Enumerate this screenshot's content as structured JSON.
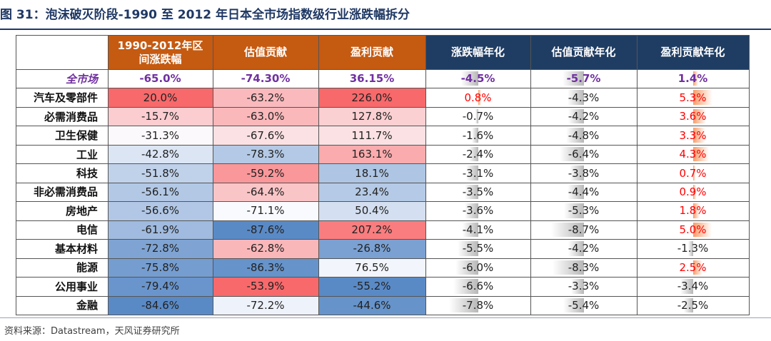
{
  "title": "图 31：泡沫破灭阶段-1990 至 2012 年日本全市场指数级行业涨跌幅拆分",
  "source": "资料来源：Datastream，天风证券研究所",
  "colors": {
    "header_orange": "#c55a11",
    "header_navy": "#1f3d63",
    "total_text": "#7030a0",
    "positive_text": "#ff0000",
    "grid_line": "#555555"
  },
  "chart_data": {
    "type": "table",
    "columns": [
      "",
      "1990-2012年区间涨跌幅",
      "估值贡献",
      "盈利贡献",
      "涨跌幅年化",
      "估值贡献年化",
      "盈利贡献年化"
    ],
    "rows": [
      {
        "label": "全市场",
        "total": true,
        "values": [
          "-65.0%",
          "-74.30%",
          "36.15%",
          "-4.5%",
          "-5.7%",
          "1.4%"
        ],
        "nums": [
          -65.0,
          -74.3,
          36.15,
          -4.5,
          -5.7,
          1.4
        ]
      },
      {
        "label": "汽车及零部件",
        "values": [
          "20.0%",
          "-63.2%",
          "226.0%",
          "0.8%",
          "-4.3%",
          "5.3%"
        ],
        "nums": [
          20.0,
          -63.2,
          226.0,
          0.8,
          -4.3,
          5.3
        ]
      },
      {
        "label": "必需消费品",
        "values": [
          "-15.7%",
          "-63.0%",
          "127.8%",
          "-0.7%",
          "-4.2%",
          "3.6%"
        ],
        "nums": [
          -15.7,
          -63.0,
          127.8,
          -0.7,
          -4.2,
          3.6
        ]
      },
      {
        "label": "卫生保健",
        "values": [
          "-31.3%",
          "-67.6%",
          "111.7%",
          "-1.6%",
          "-4.8%",
          "3.3%"
        ],
        "nums": [
          -31.3,
          -67.6,
          111.7,
          -1.6,
          -4.8,
          3.3
        ]
      },
      {
        "label": "工业",
        "values": [
          "-42.8%",
          "-78.3%",
          "163.1%",
          "-2.4%",
          "-6.4%",
          "4.3%"
        ],
        "nums": [
          -42.8,
          -78.3,
          163.1,
          -2.4,
          -6.4,
          4.3
        ]
      },
      {
        "label": "科技",
        "values": [
          "-51.8%",
          "-59.2%",
          "18.1%",
          "-3.1%",
          "-3.8%",
          "0.7%"
        ],
        "nums": [
          -51.8,
          -59.2,
          18.1,
          -3.1,
          -3.8,
          0.7
        ]
      },
      {
        "label": "非必需消费品",
        "values": [
          "-56.1%",
          "-64.4%",
          "23.4%",
          "-3.5%",
          "-4.4%",
          "0.9%"
        ],
        "nums": [
          -56.1,
          -64.4,
          23.4,
          -3.5,
          -4.4,
          0.9
        ]
      },
      {
        "label": "房地产",
        "values": [
          "-56.6%",
          "-71.1%",
          "50.4%",
          "-3.6%",
          "-5.3%",
          "1.8%"
        ],
        "nums": [
          -56.6,
          -71.1,
          50.4,
          -3.6,
          -5.3,
          1.8
        ]
      },
      {
        "label": "电信",
        "values": [
          "-61.9%",
          "-87.6%",
          "207.2%",
          "-4.1%",
          "-8.7%",
          "5.0%"
        ],
        "nums": [
          -61.9,
          -87.6,
          207.2,
          -4.1,
          -8.7,
          5.0
        ]
      },
      {
        "label": "基本材料",
        "values": [
          "-72.8%",
          "-62.8%",
          "-26.8%",
          "-5.5%",
          "-4.2%",
          "-1.3%"
        ],
        "nums": [
          -72.8,
          -62.8,
          -26.8,
          -5.5,
          -4.2,
          -1.3
        ]
      },
      {
        "label": "能源",
        "values": [
          "-75.8%",
          "-86.3%",
          "76.5%",
          "-6.0%",
          "-8.3%",
          "2.5%"
        ],
        "nums": [
          -75.8,
          -86.3,
          76.5,
          -6.0,
          -8.3,
          2.5
        ]
      },
      {
        "label": "公用事业",
        "values": [
          "-79.4%",
          "-53.9%",
          "-55.2%",
          "-6.6%",
          "-3.3%",
          "-3.4%"
        ],
        "nums": [
          -79.4,
          -53.9,
          -55.2,
          -6.6,
          -3.3,
          -3.4
        ]
      },
      {
        "label": "金融",
        "values": [
          "-84.6%",
          "-72.2%",
          "-44.6%",
          "-7.8%",
          "-5.4%",
          "-2.5%"
        ],
        "nums": [
          -84.6,
          -72.2,
          -44.6,
          -7.8,
          -5.4,
          -2.5
        ]
      }
    ]
  }
}
